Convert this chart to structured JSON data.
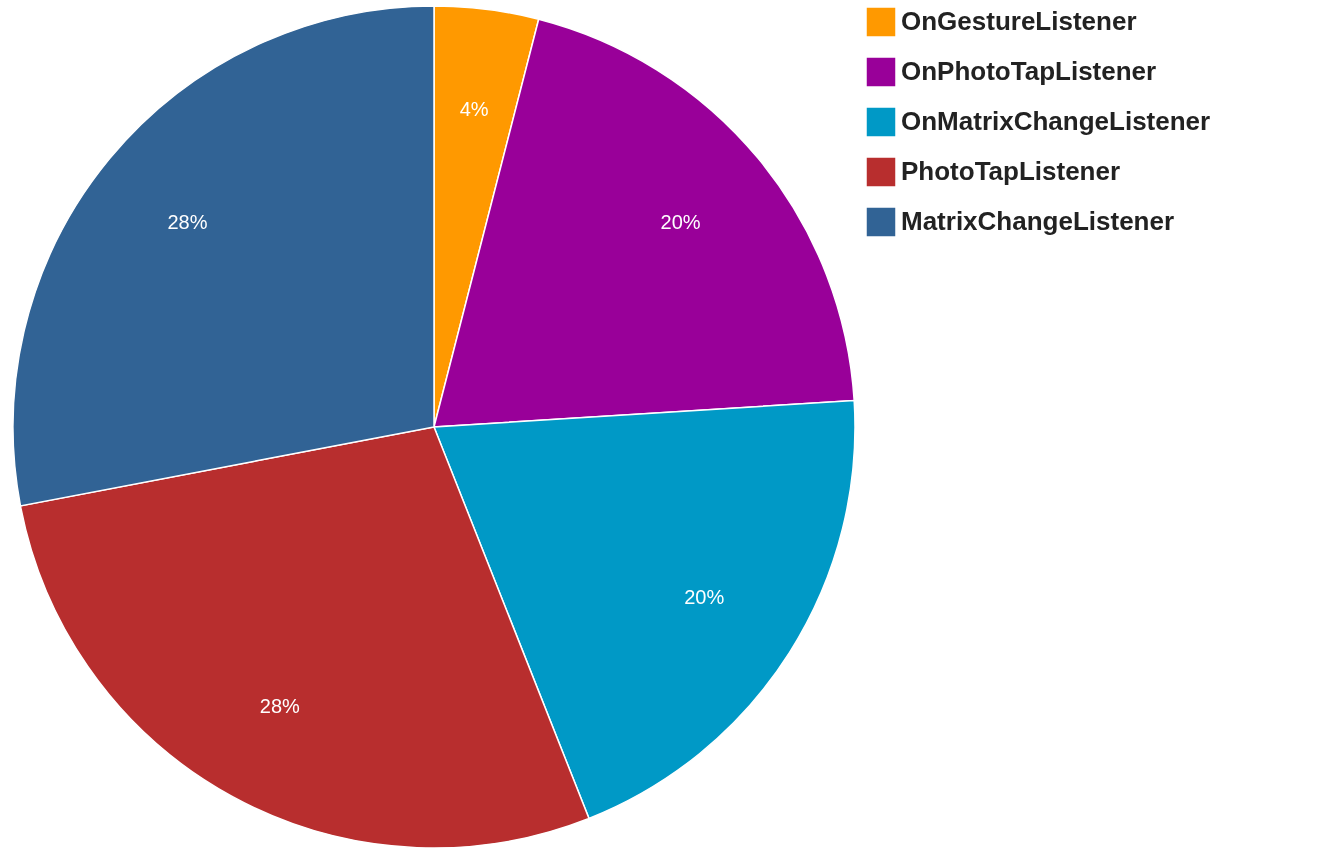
{
  "chart_data": {
    "type": "pie",
    "categories": [
      "OnGestureListener",
      "OnPhotoTapListener",
      "OnMatrixChangeListener",
      "PhotoTapListener",
      "MatrixChangeListener"
    ],
    "values": [
      4,
      20,
      20,
      28,
      28
    ],
    "colors": [
      "#ff9900",
      "#990099",
      "#0099c6",
      "#b82e2e",
      "#316395"
    ],
    "value_labels": [
      "4%",
      "20%",
      "20%",
      "28%",
      "28%"
    ],
    "legend": "right"
  }
}
